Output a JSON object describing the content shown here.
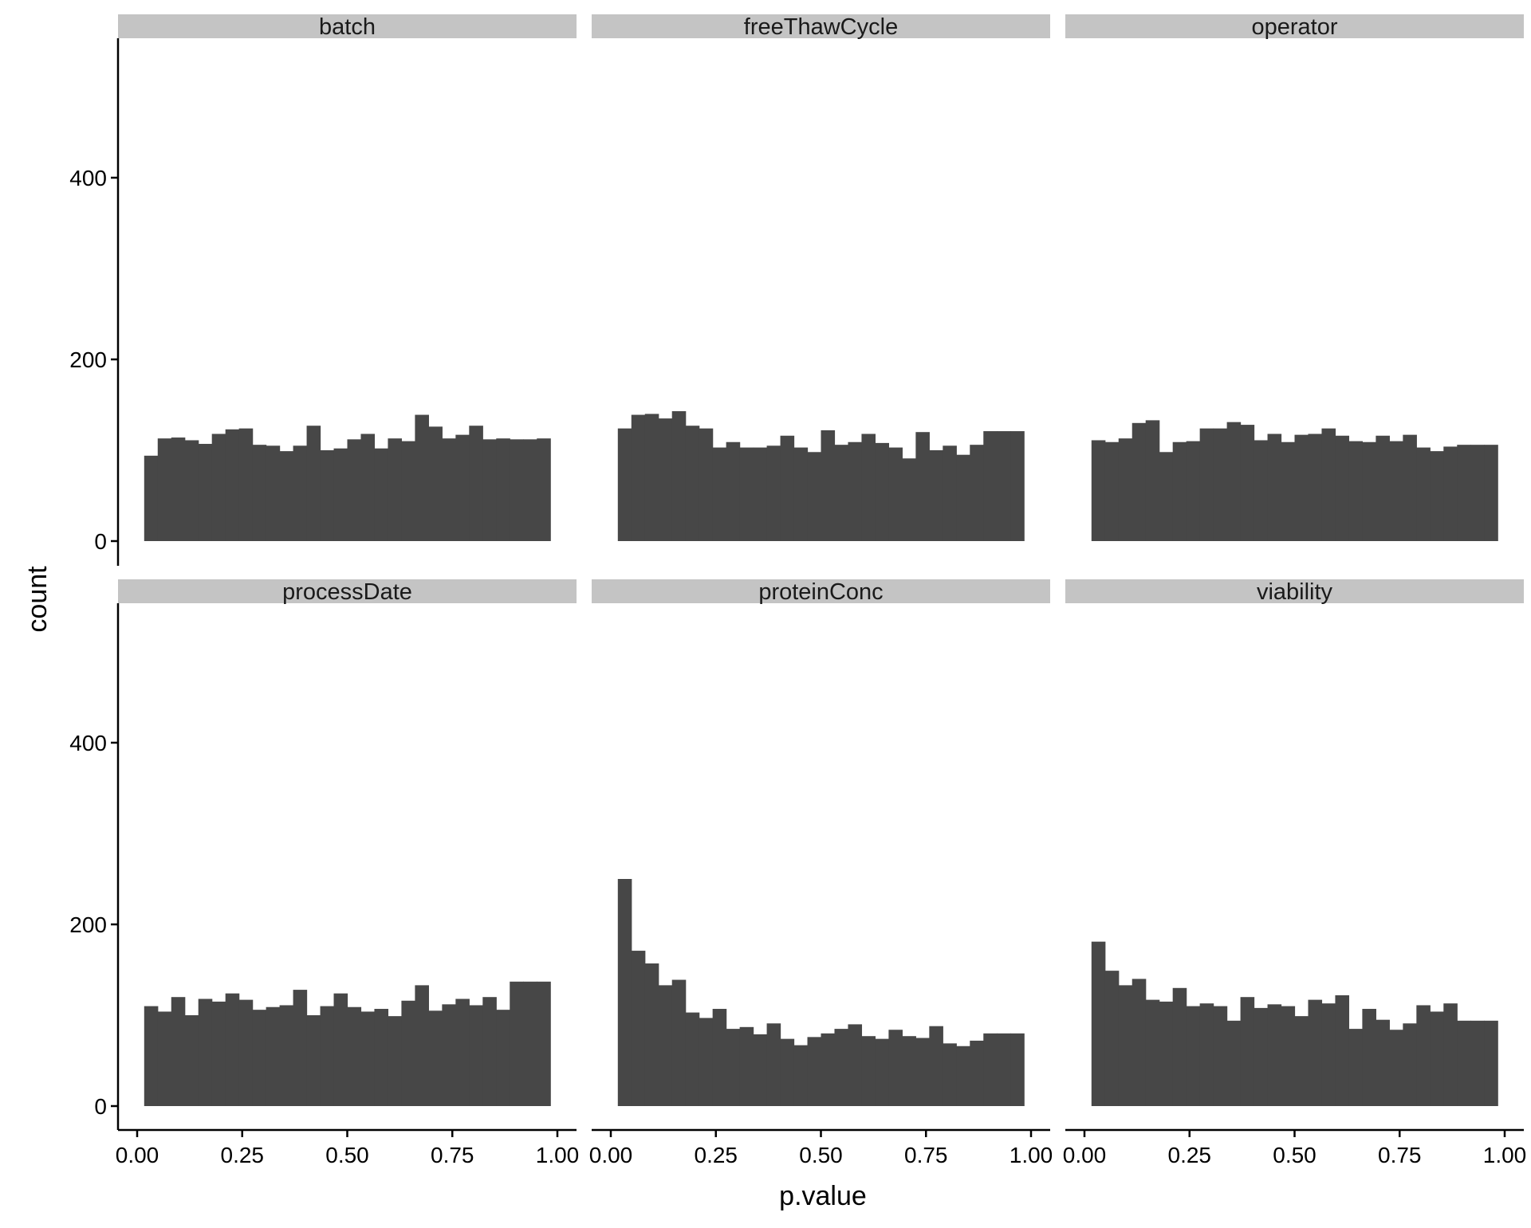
{
  "chart_data": {
    "type": "bar",
    "subtype": "faceted-histogram",
    "title": "",
    "xlabel": "p.value",
    "ylabel": "count",
    "xlim": [
      0,
      1
    ],
    "ylim": [
      0,
      550
    ],
    "x_ticks": [
      "0.00",
      "0.25",
      "0.50",
      "0.75",
      "1.00"
    ],
    "y_ticks": [
      "0",
      "200",
      "400"
    ],
    "bins": 30,
    "bin_width": 0.0333,
    "bar_color": "#474747",
    "strip_color": "#c4c4c4",
    "grid": false,
    "legend": "none",
    "facets": [
      {
        "name": "batch",
        "values": [
          94,
          113,
          114,
          111,
          107,
          118,
          123,
          124,
          106,
          105,
          99,
          105,
          127,
          100,
          102,
          112,
          118,
          102,
          113,
          110,
          139,
          126,
          113,
          117,
          127,
          112,
          113,
          112,
          112,
          113
        ]
      },
      {
        "name": "freeThawCycle",
        "values": [
          124,
          139,
          140,
          135,
          143,
          127,
          124,
          103,
          109,
          103,
          103,
          105,
          116,
          103,
          98,
          122,
          106,
          109,
          118,
          108,
          103,
          91,
          120,
          100,
          105,
          95,
          106,
          121,
          121,
          121
        ]
      },
      {
        "name": "operator",
        "values": [
          111,
          109,
          113,
          130,
          133,
          98,
          109,
          110,
          124,
          124,
          131,
          128,
          111,
          118,
          109,
          117,
          118,
          124,
          116,
          110,
          109,
          116,
          110,
          117,
          103,
          99,
          104,
          106,
          106,
          106
        ]
      },
      {
        "name": "processDate",
        "values": [
          110,
          104,
          120,
          100,
          118,
          115,
          124,
          117,
          106,
          109,
          111,
          128,
          100,
          110,
          124,
          109,
          104,
          107,
          99,
          116,
          133,
          105,
          112,
          118,
          111,
          120,
          106,
          137,
          137,
          137
        ]
      },
      {
        "name": "proteinConc",
        "values": [
          250,
          171,
          157,
          133,
          139,
          103,
          97,
          107,
          85,
          87,
          79,
          91,
          74,
          67,
          76,
          80,
          85,
          90,
          77,
          74,
          84,
          77,
          75,
          88,
          69,
          66,
          72,
          80,
          80,
          80
        ]
      },
      {
        "name": "viability",
        "values": [
          181,
          149,
          133,
          140,
          117,
          115,
          130,
          110,
          113,
          110,
          94,
          120,
          108,
          112,
          110,
          99,
          117,
          113,
          122,
          85,
          107,
          95,
          84,
          91,
          111,
          104,
          113,
          94,
          94,
          94
        ]
      }
    ]
  }
}
